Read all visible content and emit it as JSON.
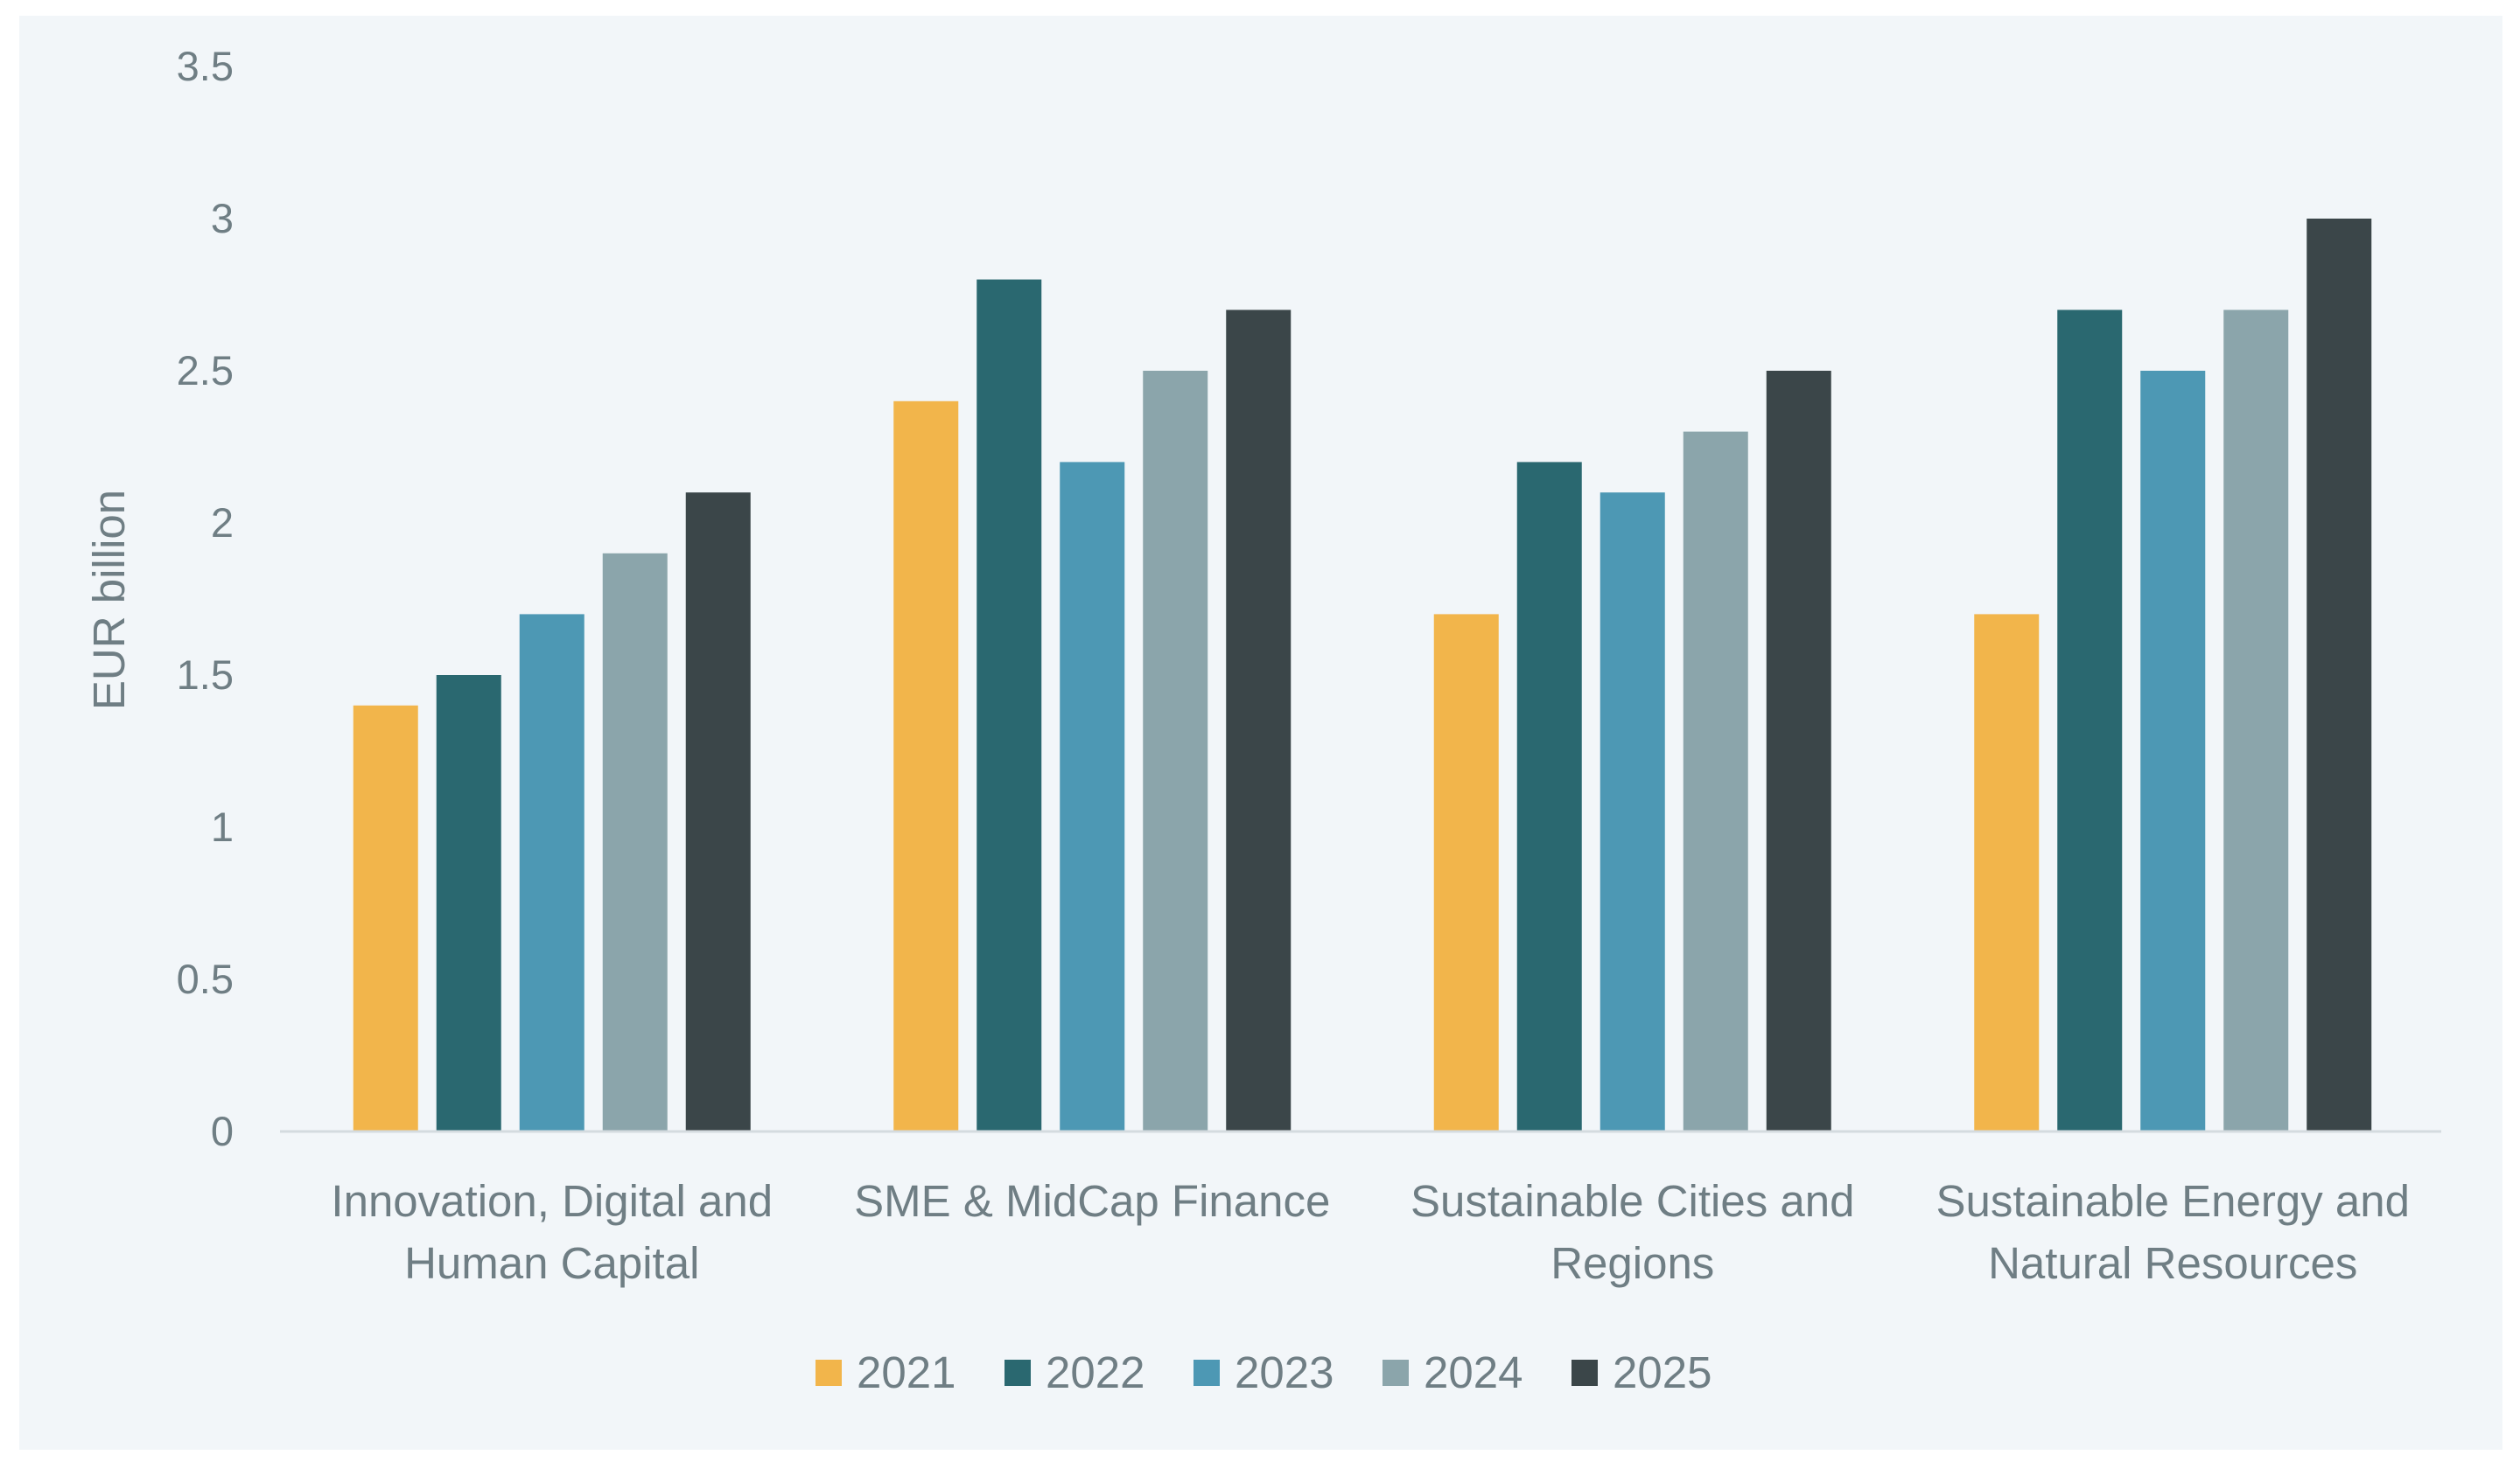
{
  "chart_data": {
    "type": "bar",
    "title": "",
    "xlabel": "",
    "ylabel": "EUR billion",
    "ylim": [
      0,
      3.5
    ],
    "yticks": [
      0,
      0.5,
      1,
      1.5,
      2,
      2.5,
      3,
      3.5
    ],
    "ytick_labels": [
      "0",
      "0.5",
      "1",
      "1.5",
      "2",
      "2.5",
      "3",
      "3.5"
    ],
    "grid": false,
    "legend_position": "bottom",
    "categories": [
      [
        "Innovation, Digital and",
        "Human Capital"
      ],
      [
        "SME & MidCap Finance"
      ],
      [
        "Sustainable Cities and",
        "Regions"
      ],
      [
        "Sustainable Energy and",
        "Natural Resources"
      ]
    ],
    "series": [
      {
        "name": "2021",
        "color": "#f2b54b",
        "values": [
          1.4,
          2.4,
          1.7,
          1.7
        ]
      },
      {
        "name": "2022",
        "color": "#2a6870",
        "values": [
          1.5,
          2.8,
          2.2,
          2.7
        ]
      },
      {
        "name": "2023",
        "color": "#4d98b4",
        "values": [
          1.7,
          2.2,
          2.1,
          2.5
        ]
      },
      {
        "name": "2024",
        "color": "#8ba5ab",
        "values": [
          1.9,
          2.5,
          2.3,
          2.7
        ]
      },
      {
        "name": "2025",
        "color": "#3b4649",
        "values": [
          2.1,
          2.7,
          2.5,
          3.0
        ]
      }
    ],
    "colors": {
      "background": "#f2f6f9",
      "text": "#6f7e84",
      "axis": "#d4dbdf"
    }
  }
}
